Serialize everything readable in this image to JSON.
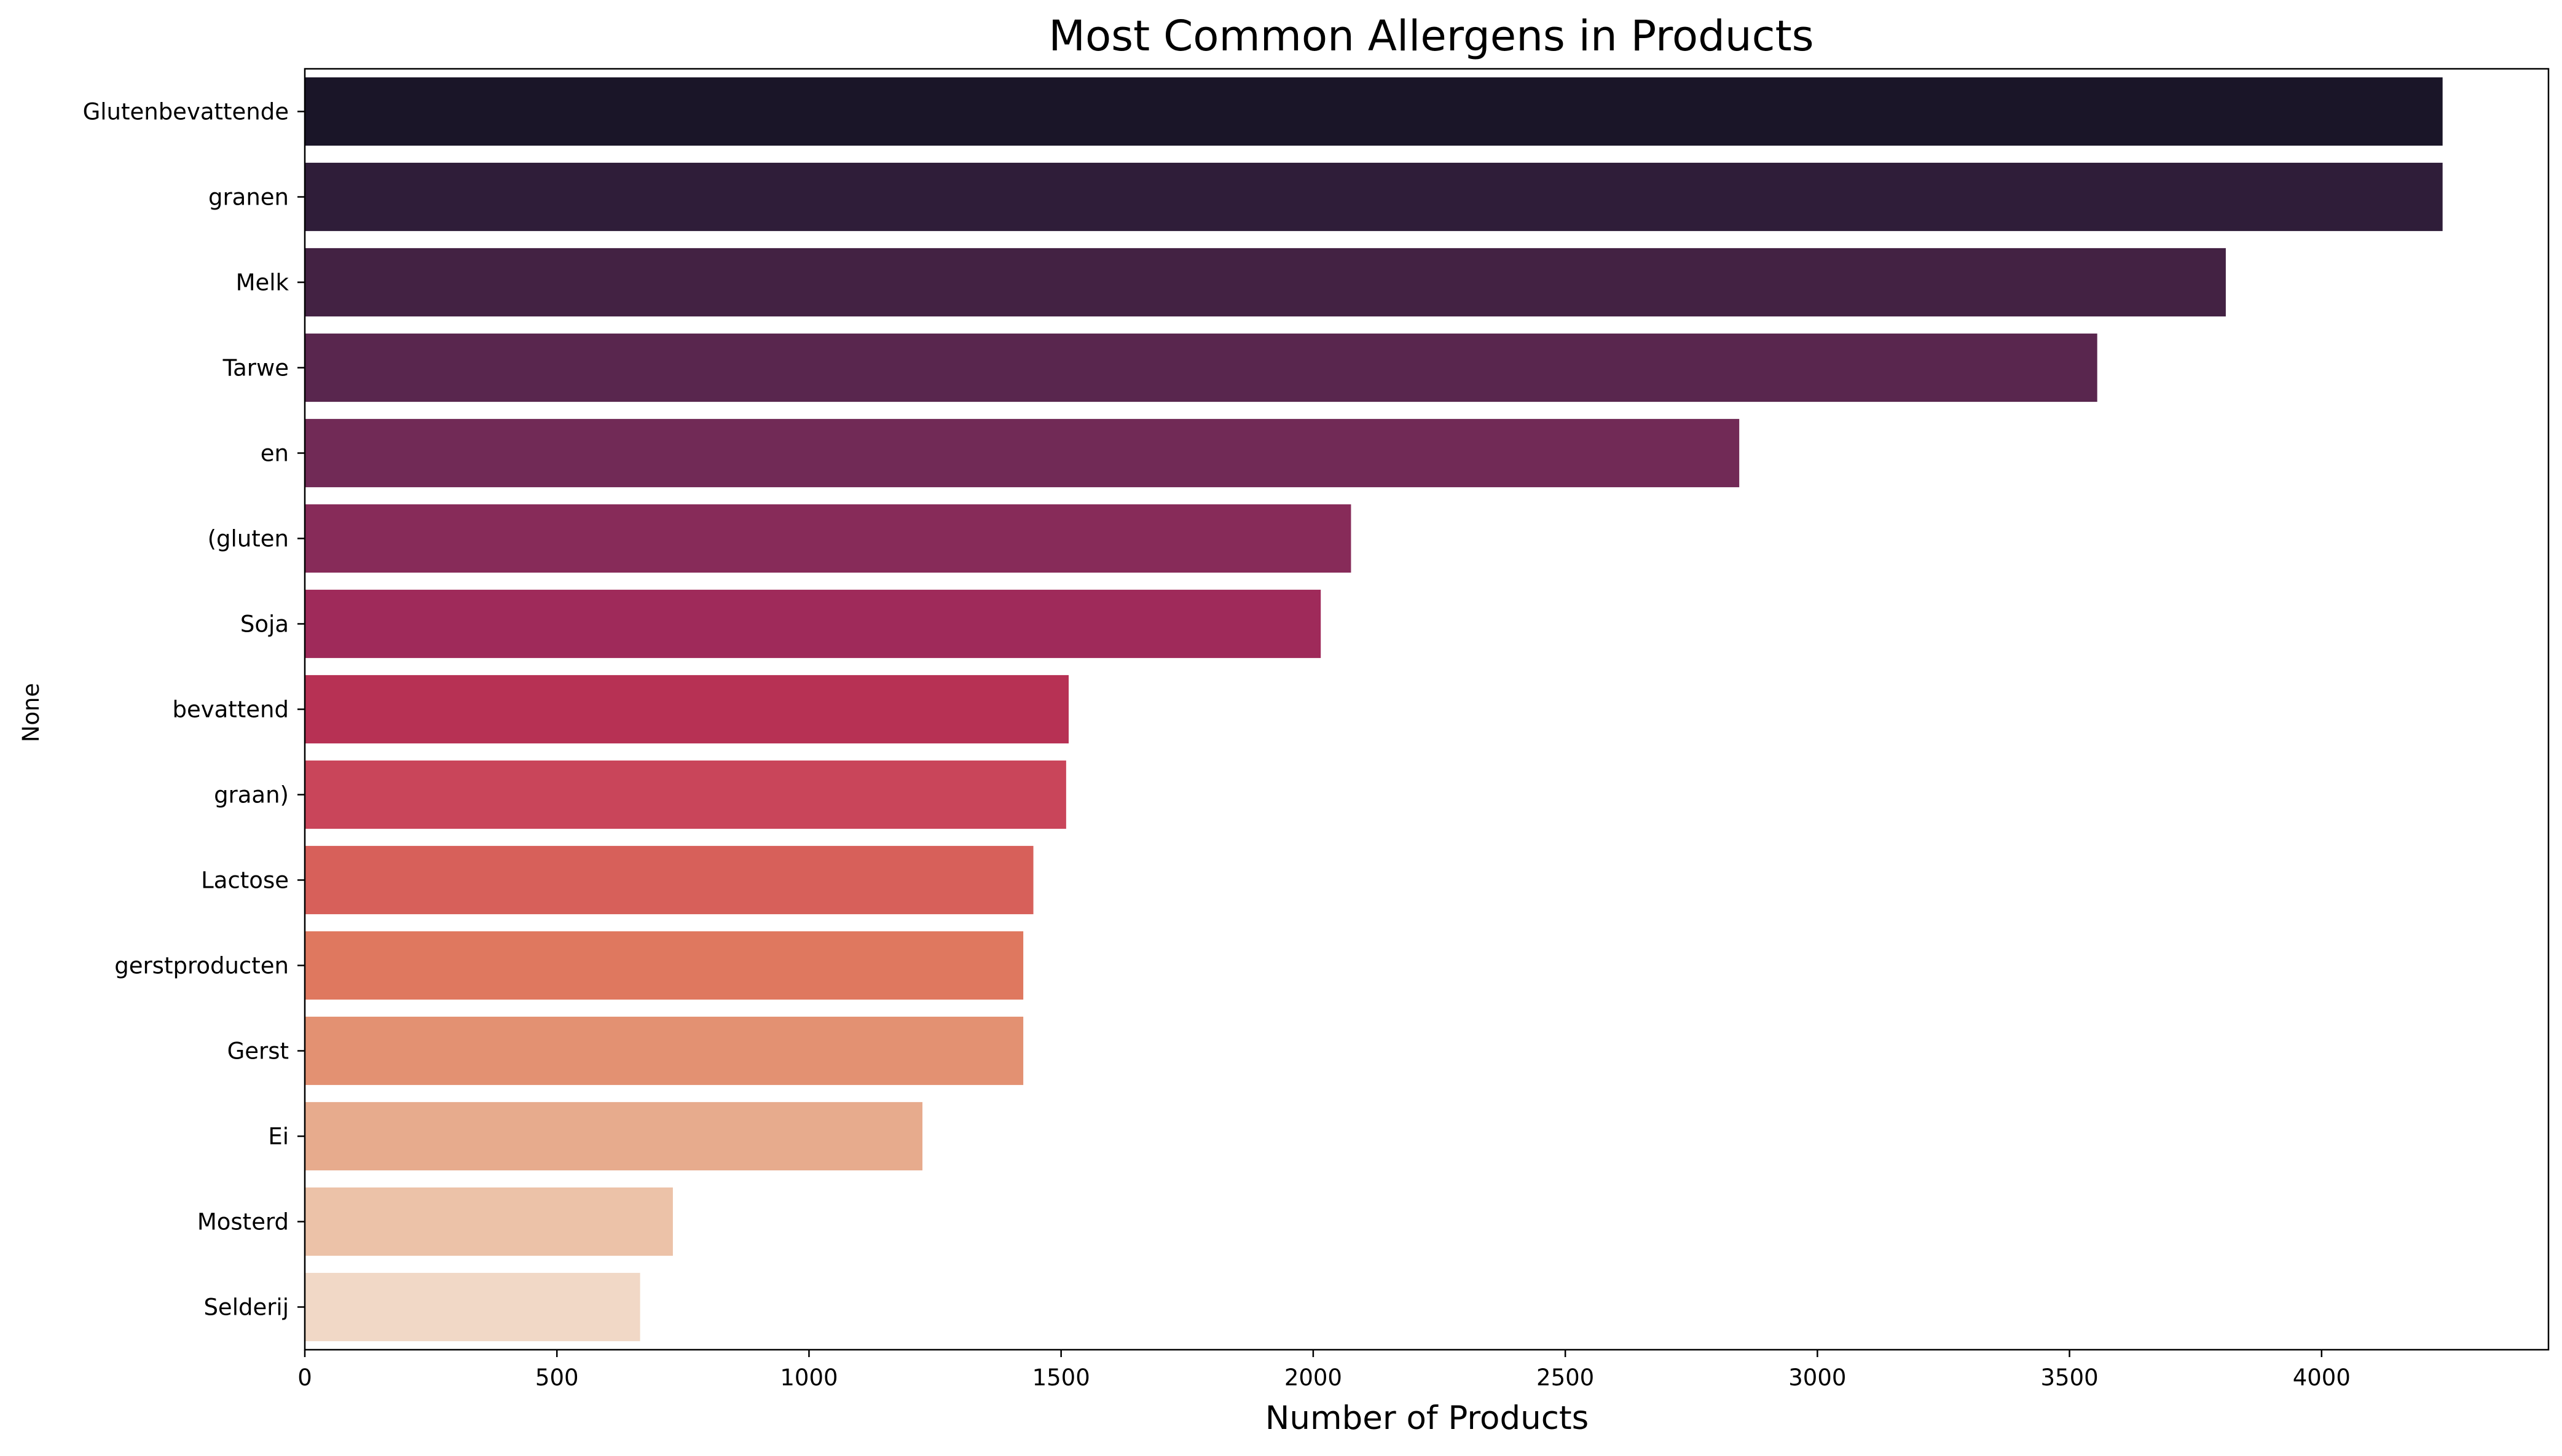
{
  "chart_data": {
    "type": "bar",
    "orientation": "horizontal",
    "title": "Most Common Allergens in Products",
    "xlabel": "Number of Products",
    "ylabel": "None",
    "xlim": [
      0,
      4450
    ],
    "xticks": [
      0,
      500,
      1000,
      1500,
      2000,
      2500,
      3000,
      3500,
      4000
    ],
    "grid": false,
    "legend": "none",
    "categories": [
      "Glutenbevattende",
      "granen",
      "Melk",
      "Tarwe",
      "en",
      "(gluten",
      "Soja",
      "bevattend",
      "graan)",
      "Lactose",
      "gerstproducten",
      "Gerst",
      "Ei",
      "Mosterd",
      "Selderij"
    ],
    "values": [
      4240,
      4240,
      3810,
      3555,
      2845,
      2075,
      2015,
      1515,
      1510,
      1445,
      1425,
      1425,
      1225,
      730,
      665
    ],
    "colors": [
      "#1a1528",
      "#2f1d39",
      "#432243",
      "#59264e",
      "#712a56",
      "#872b59",
      "#9f2a5a",
      "#b73154",
      "#c9455a",
      "#d7605a",
      "#df785f",
      "#e39172",
      "#e7ab8d",
      "#ecc2a8",
      "#f1d8c6"
    ]
  }
}
